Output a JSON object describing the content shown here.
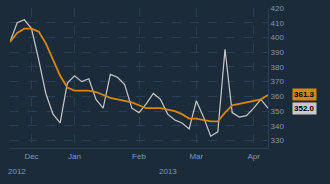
{
  "chart_data": {
    "type": "line",
    "categories": [
      null,
      null,
      null,
      "Dec",
      null,
      null,
      null,
      null,
      null,
      "Jan",
      null,
      null,
      null,
      null,
      null,
      null,
      null,
      null,
      "Feb",
      null,
      null,
      null,
      null,
      null,
      null,
      null,
      "Mar",
      null,
      null,
      null,
      null,
      null,
      null,
      null,
      "Apr",
      null,
      null
    ],
    "series": [
      {
        "color": "#c8c8c8",
        "values": [
          397,
          410,
          412,
          406,
          385,
          362,
          348,
          342,
          369,
          374,
          370,
          372,
          358,
          352,
          375,
          373,
          368,
          352,
          349,
          355,
          362,
          358,
          348,
          344,
          342,
          338,
          357,
          346,
          333,
          336,
          392,
          349,
          346,
          347,
          352,
          358,
          352
        ]
      },
      {
        "color": "#d4870a",
        "values": [
          397,
          403,
          406,
          406,
          404,
          396,
          385,
          374,
          366,
          364,
          364,
          364,
          363,
          361,
          359,
          358,
          357,
          356,
          354,
          352,
          352,
          352,
          351,
          350,
          348,
          345,
          345,
          344,
          343,
          343,
          349,
          354,
          355,
          356,
          357,
          358,
          361
        ]
      }
    ],
    "ylim": [
      325,
      420
    ],
    "yticks": [
      330,
      340,
      350,
      360,
      370,
      380,
      390,
      400,
      410,
      420
    ],
    "grid": true,
    "annotations": [
      {
        "text": "2012",
        "x": 1
      },
      {
        "text": "2013",
        "x": 22
      },
      {
        "text": "361.3",
        "y": 361.3,
        "color": "#d4870a"
      },
      {
        "text": "352.0",
        "y": 352.0,
        "color": "#c8c8c8"
      }
    ]
  }
}
